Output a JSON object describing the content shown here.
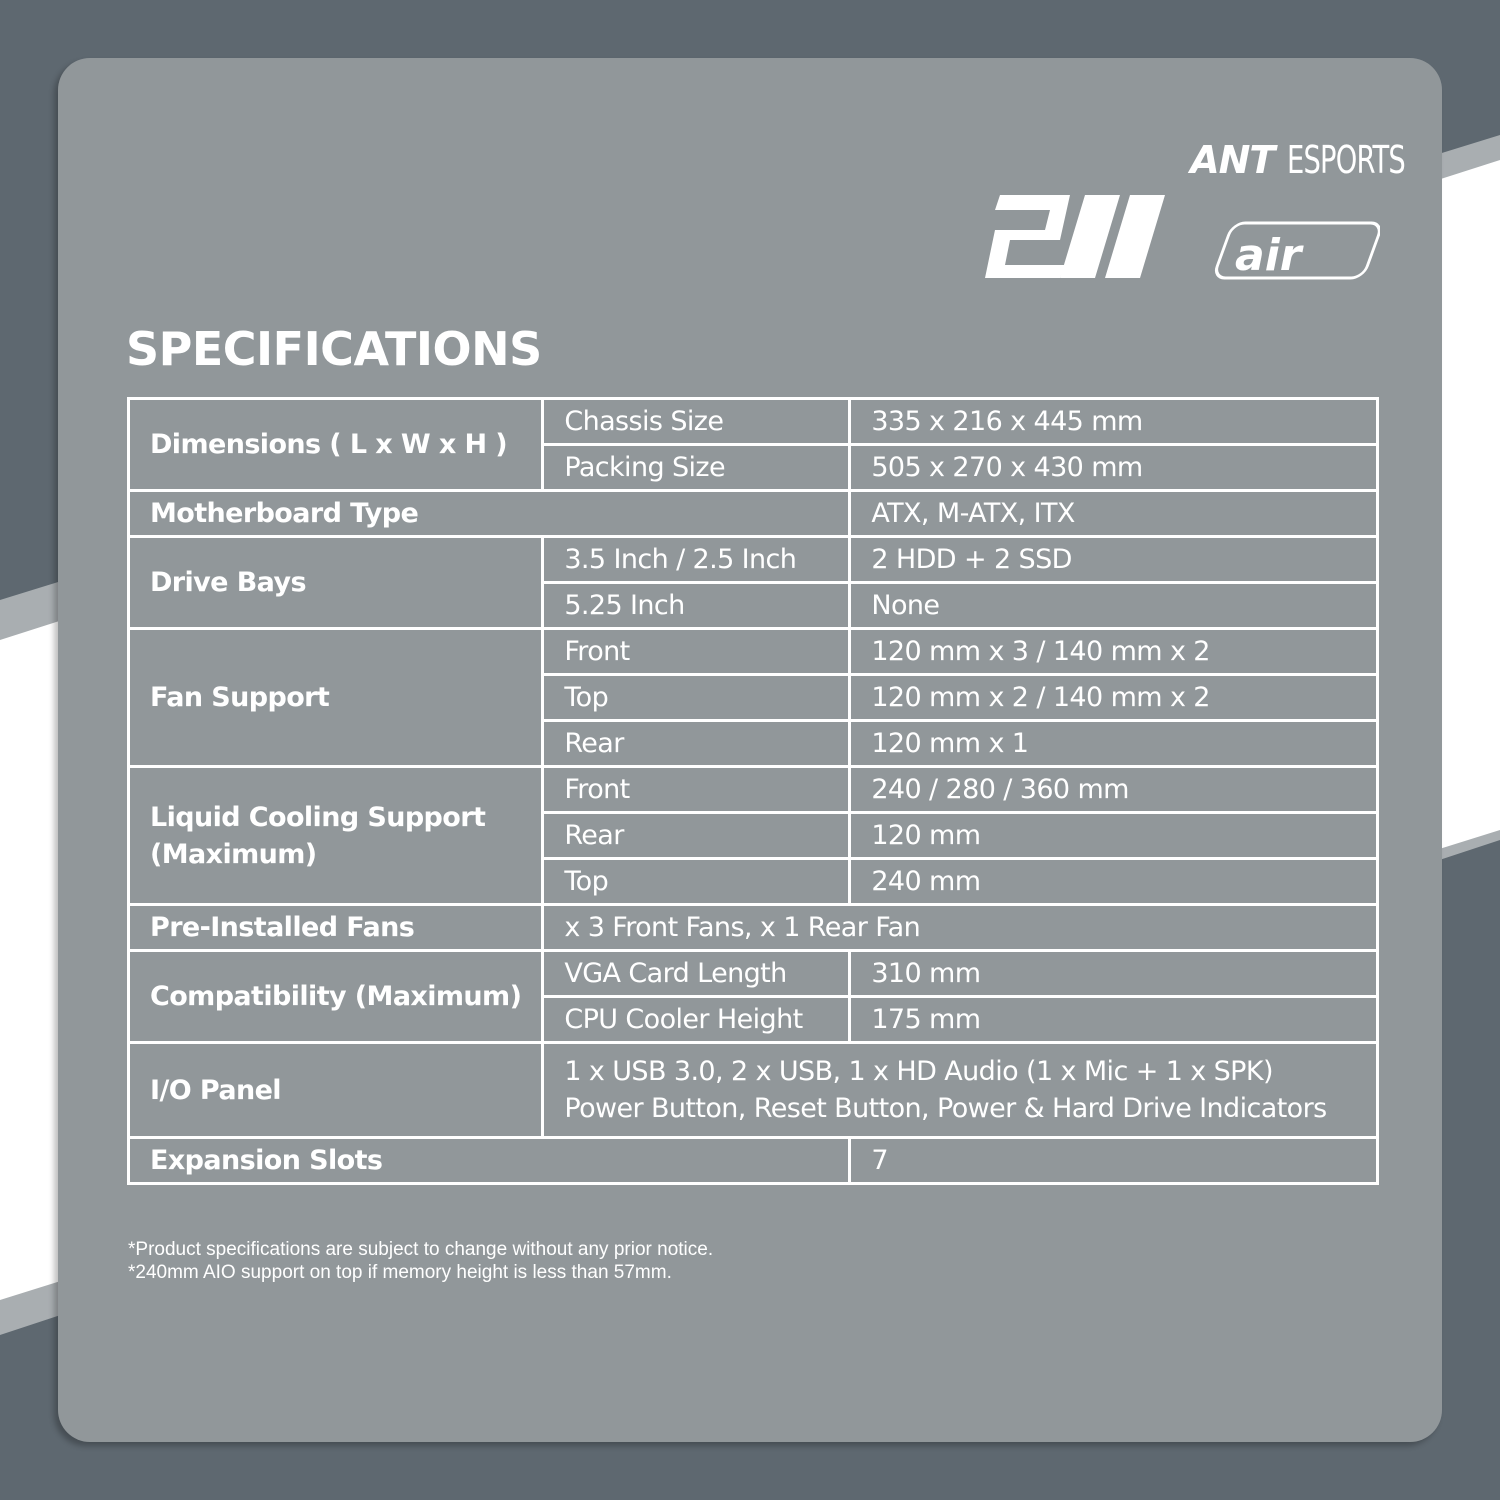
{
  "brand": {
    "name": "ANT ESPORTS",
    "name_part1": "ANT",
    "name_part2": "ESPORTS",
    "model": "211",
    "model_suffix": "air"
  },
  "colors": {
    "background": "#5e6870",
    "panel": "#91979a",
    "text": "#ffffff",
    "band": "#ffffff"
  },
  "title": "SPECIFICATIONS",
  "specs": {
    "dimensions": {
      "label": "Dimensions ( L x W x H )",
      "chassis_label": "Chassis Size",
      "chassis_value": "335 x 216 x 445 mm",
      "packing_label": "Packing Size",
      "packing_value": "505 x 270 x 430 mm"
    },
    "motherboard": {
      "label": "Motherboard Type",
      "value": "ATX, M-ATX, ITX"
    },
    "drive_bays": {
      "label": "Drive Bays",
      "r1_label": "3.5 Inch / 2.5 Inch",
      "r1_value": "2 HDD + 2 SSD",
      "r2_label": "5.25 Inch",
      "r2_value": "None"
    },
    "fan_support": {
      "label": "Fan Support",
      "front_label": "Front",
      "front_value": "120 mm x 3 / 140 mm x 2",
      "top_label": "Top",
      "top_value": "120 mm x 2 / 140 mm x 2",
      "rear_label": "Rear",
      "rear_value": "120 mm x 1"
    },
    "liquid_cooling": {
      "label": "Liquid Cooling Support (Maximum)",
      "front_label": "Front",
      "front_value": "240 / 280 / 360 mm",
      "rear_label": "Rear",
      "rear_value": "120 mm",
      "top_label": "Top",
      "top_value": "240 mm"
    },
    "preinstalled": {
      "label": "Pre-Installed Fans",
      "value": "x 3 Front Fans, x 1 Rear Fan"
    },
    "compatibility": {
      "label": "Compatibility (Maximum)",
      "vga_label": "VGA Card Length",
      "vga_value": "310 mm",
      "cpu_label": "CPU Cooler Height",
      "cpu_value": "175 mm"
    },
    "io_panel": {
      "label": "I/O Panel",
      "value": "1 x USB 3.0, 2 x USB, 1 x HD Audio (1 x Mic + 1 x SPK) Power Button, Reset Button, Power & Hard Drive Indicators"
    },
    "expansion": {
      "label": "Expansion Slots",
      "value": "7"
    }
  },
  "notes": [
    "*Product specifications are subject to change without any prior notice.",
    "*240mm AIO support on top if memory height is less than 57mm."
  ]
}
